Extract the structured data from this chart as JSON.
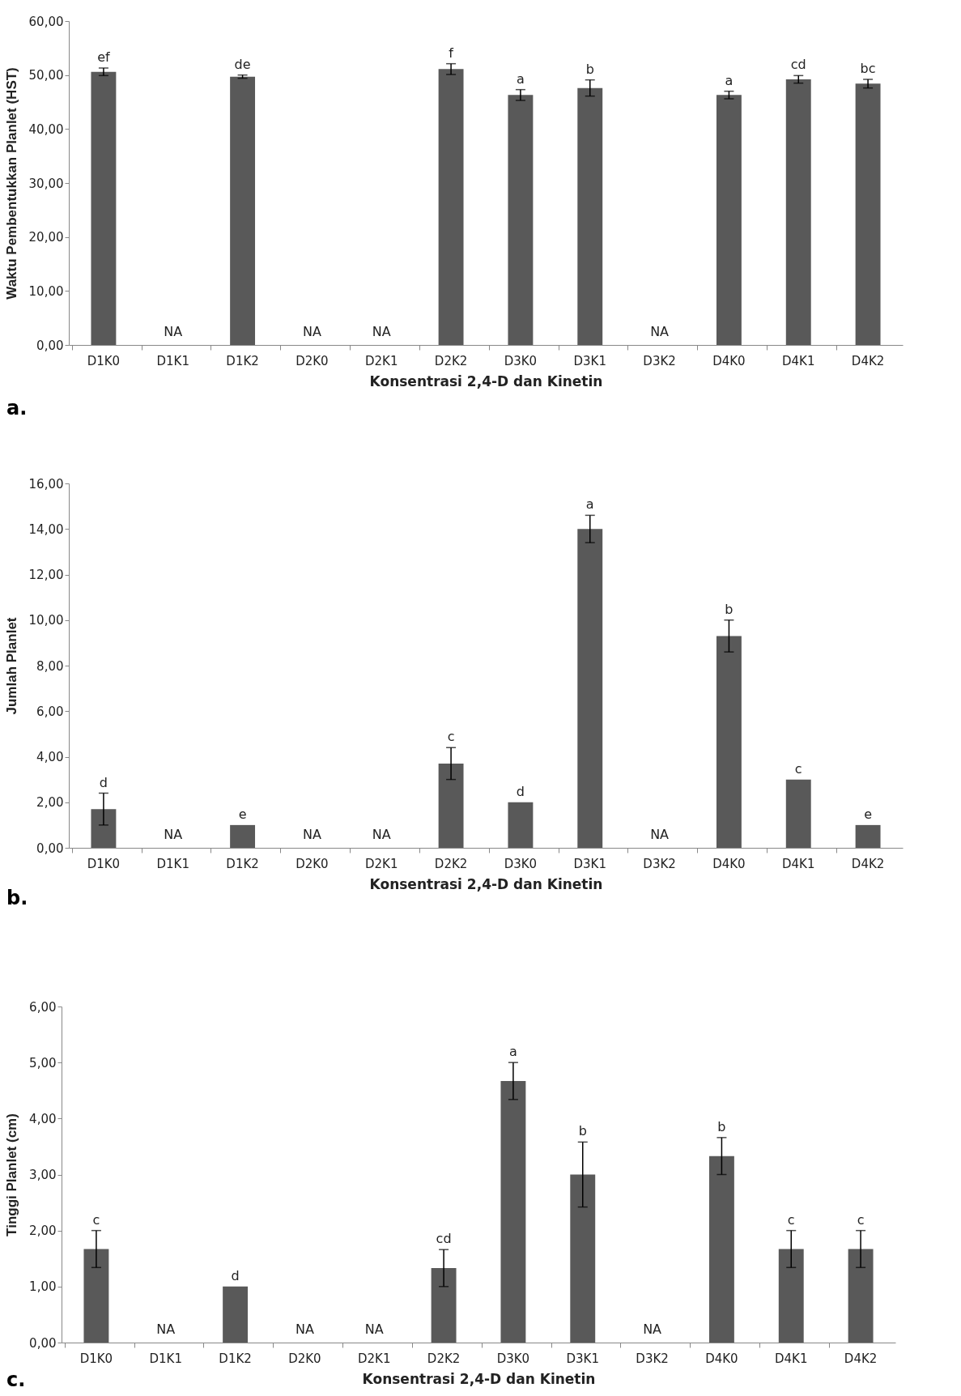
{
  "chart_data": [
    {
      "type": "bar",
      "xlabel": "Konsentrasi 2,4-D dan Kinetin",
      "ylabel": "Waktu Pembentukkan Planlet (HST)",
      "categories": [
        "D1K0",
        "D1K1",
        "D1K2",
        "D2K0",
        "D2K1",
        "D2K2",
        "D3K0",
        "D3K1",
        "D3K2",
        "D4K0",
        "D4K1",
        "D4K2"
      ],
      "series": [
        {
          "color": "#595959",
          "values": [
            50.6,
            null,
            49.7,
            null,
            null,
            51.1,
            46.3,
            47.6,
            null,
            46.3,
            49.2,
            48.4
          ],
          "errors": [
            0.7,
            null,
            0.3,
            null,
            null,
            1.0,
            1.0,
            1.5,
            null,
            0.7,
            0.7,
            0.8
          ],
          "value_labels": [
            null,
            "NA",
            null,
            "NA",
            "NA",
            null,
            null,
            null,
            "NA",
            null,
            null,
            null
          ]
        }
      ],
      "ylim": [
        0,
        60
      ],
      "yticks": [
        {
          "value": 0,
          "label": "0,00"
        },
        {
          "value": 10,
          "label": "10,00"
        },
        {
          "value": 20,
          "label": "20,00"
        },
        {
          "value": 30,
          "label": "30,00"
        },
        {
          "value": 40,
          "label": "40,00"
        },
        {
          "value": 50,
          "label": "50,00"
        },
        {
          "value": 60,
          "label": "60,00"
        }
      ],
      "annotations": [
        {
          "text": "ef",
          "x": "D1K0",
          "y": 51.3
        },
        {
          "text": "de",
          "x": "D1K2",
          "y": 50.0
        },
        {
          "text": "f",
          "x": "D2K2",
          "y": 52.1
        },
        {
          "text": "a",
          "x": "D3K0",
          "y": 47.3
        },
        {
          "text": "b",
          "x": "D3K1",
          "y": 49.1
        },
        {
          "text": "a",
          "x": "D4K0",
          "y": 47.0
        },
        {
          "text": "cd",
          "x": "D4K1",
          "y": 49.9
        },
        {
          "text": "bc",
          "x": "D4K2",
          "y": 49.2
        },
        "a."
      ]
    },
    {
      "type": "bar",
      "xlabel": "Konsentrasi 2,4-D dan Kinetin",
      "ylabel": "Jumlah Planlet",
      "categories": [
        "D1K0",
        "D1K1",
        "D1K2",
        "D2K0",
        "D2K1",
        "D2K2",
        "D3K0",
        "D3K1",
        "D3K2",
        "D4K0",
        "D4K1",
        "D4K2"
      ],
      "series": [
        {
          "color": "#595959",
          "values": [
            1.7,
            null,
            1.0,
            null,
            null,
            3.7,
            2.0,
            14.0,
            null,
            9.3,
            3.0,
            1.0
          ],
          "errors": [
            0.7,
            null,
            null,
            null,
            null,
            0.7,
            null,
            0.6,
            null,
            0.7,
            null,
            null
          ],
          "value_labels": [
            null,
            "NA",
            null,
            "NA",
            "NA",
            null,
            null,
            null,
            "NA",
            null,
            null,
            null
          ]
        }
      ],
      "ylim": [
        0,
        16
      ],
      "yticks": [
        {
          "value": 0,
          "label": "0,00"
        },
        {
          "value": 2,
          "label": "2,00"
        },
        {
          "value": 4,
          "label": "4,00"
        },
        {
          "value": 6,
          "label": "6,00"
        },
        {
          "value": 8,
          "label": "8,00"
        },
        {
          "value": 10,
          "label": "10,00"
        },
        {
          "value": 12,
          "label": "12,00"
        },
        {
          "value": 14,
          "label": "14,00"
        },
        {
          "value": 16,
          "label": "16,00"
        }
      ],
      "annotations": [
        {
          "text": "d",
          "x": "D1K0",
          "y": 2.4
        },
        {
          "text": "e",
          "x": "D1K2",
          "y": 1.0
        },
        {
          "text": "c",
          "x": "D2K2",
          "y": 4.4
        },
        {
          "text": "d",
          "x": "D3K0",
          "y": 2.0
        },
        {
          "text": "a",
          "x": "D3K1",
          "y": 14.6
        },
        {
          "text": "b",
          "x": "D4K0",
          "y": 10.0
        },
        {
          "text": "c",
          "x": "D4K1",
          "y": 3.0
        },
        {
          "text": "e",
          "x": "D4K2",
          "y": 1.0
        },
        "b."
      ]
    },
    {
      "type": "bar",
      "xlabel": "Konsentrasi 2,4-D dan Kinetin",
      "ylabel": "Tinggi Planlet (cm)",
      "categories": [
        "D1K0",
        "D1K1",
        "D1K2",
        "D2K0",
        "D2K1",
        "D2K2",
        "D3K0",
        "D3K1",
        "D3K2",
        "D4K0",
        "D4K1",
        "D4K2"
      ],
      "series": [
        {
          "color": "#595959",
          "values": [
            1.67,
            null,
            1.0,
            null,
            null,
            1.33,
            4.67,
            3.0,
            null,
            3.33,
            1.67,
            1.67
          ],
          "errors": [
            0.33,
            null,
            null,
            null,
            null,
            0.33,
            0.33,
            0.58,
            null,
            0.33,
            0.33,
            0.33
          ],
          "value_labels": [
            null,
            "NA",
            null,
            "NA",
            "NA",
            null,
            null,
            null,
            "NA",
            null,
            null,
            null
          ]
        }
      ],
      "ylim": [
        0,
        6
      ],
      "yticks": [
        {
          "value": 0,
          "label": "0,00"
        },
        {
          "value": 1,
          "label": "1,00"
        },
        {
          "value": 2,
          "label": "2,00"
        },
        {
          "value": 3,
          "label": "3,00"
        },
        {
          "value": 4,
          "label": "4,00"
        },
        {
          "value": 5,
          "label": "5,00"
        },
        {
          "value": 6,
          "label": "6,00"
        }
      ],
      "annotations": [
        {
          "text": "c",
          "x": "D1K0",
          "y": 2.0
        },
        {
          "text": "d",
          "x": "D1K2",
          "y": 1.0
        },
        {
          "text": "cd",
          "x": "D2K2",
          "y": 1.66
        },
        {
          "text": "a",
          "x": "D3K0",
          "y": 5.0
        },
        {
          "text": "b",
          "x": "D3K1",
          "y": 3.58
        },
        {
          "text": "b",
          "x": "D4K0",
          "y": 3.66
        },
        {
          "text": "c",
          "x": "D4K1",
          "y": 2.0
        },
        {
          "text": "c",
          "x": "D4K2",
          "y": 2.0
        },
        "c."
      ]
    }
  ]
}
